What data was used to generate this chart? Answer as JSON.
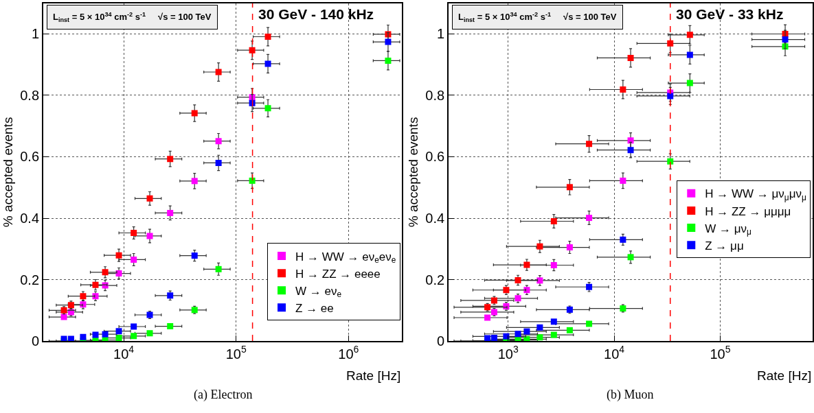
{
  "chart_data": [
    {
      "type": "scatter",
      "xlabel": "Rate [Hz]",
      "ylabel": "% accepted events",
      "log": "x",
      "grid": true,
      "legend": "bottom right",
      "marker": "square",
      "xlim": [
        1920,
        3000000
      ],
      "ylim": [
        0,
        1.1
      ],
      "xticks": [
        {
          "value": 10000,
          "label": "10$^{4}$"
        },
        {
          "value": 100000,
          "label": "10$^{5}$"
        },
        {
          "value": 1000000,
          "label": "10$^{6}$"
        }
      ],
      "yticks": [
        0,
        0.2,
        0.4,
        0.6,
        0.8,
        1
      ],
      "x": [
        2940,
        3400,
        4350,
        5610,
        6840,
        9060,
        12280,
        17060,
        25900,
        42700,
        69800,
        139000,
        192000,
        2250000
      ],
      "annotations": [
        "L$_{inst}$ = 5 × 10$^{34}$ cm$^{-2}$ s$^{-1}$     √s = 100 TeV",
        "(a) Electron"
      ],
      "ref_lines": [
        {
          "axis": "x",
          "value": 140000,
          "label": "30 GeV - 140 kHz",
          "color": "#ff0000",
          "line_style": "dashed"
        }
      ],
      "series": [
        {
          "name": "H → WW → eν$_{e}$eν$_{e}$",
          "color": "#ff00ff",
          "values": [
            0.078,
            0.094,
            0.119,
            0.146,
            0.181,
            0.22,
            0.265,
            0.342,
            0.417,
            0.521,
            0.651,
            0.794,
            null,
            null
          ],
          "errors": [
            null,
            0.012,
            0.014,
            0.015,
            0.017,
            0.018,
            0.02,
            0.022,
            0.023,
            0.025,
            0.025,
            0.028,
            null,
            null
          ],
          "xerrors": [
            [
              2170,
              3730
            ],
            [
              2510,
              4310
            ],
            [
              3210,
              5520
            ],
            [
              4150,
              7120
            ],
            [
              5050,
              8680
            ],
            [
              6700,
              11500
            ],
            [
              9070,
              15580
            ],
            [
              12600,
              21600
            ],
            [
              19100,
              32900
            ],
            [
              31600,
              54200
            ],
            [
              51600,
              88600
            ],
            [
              103000,
              176000
            ],
            null,
            null
          ]
        },
        {
          "name": "H → ZZ → eeee",
          "color": "#ff0000",
          "values": [
            0.1,
            0.117,
            0.146,
            0.183,
            0.224,
            0.279,
            0.352,
            0.464,
            0.593,
            0.742,
            0.876,
            0.947,
            0.991,
            0.999
          ],
          "errors": [
            0.012,
            0.013,
            0.015,
            0.017,
            0.018,
            0.02,
            0.02,
            0.022,
            0.025,
            0.027,
            0.03,
            0.03,
            0.03,
            0.03
          ],
          "xerrors": [
            [
              2170,
              3730
            ],
            [
              2510,
              4310
            ],
            [
              3210,
              5520
            ],
            [
              4150,
              7120
            ],
            [
              5050,
              8680
            ],
            [
              6700,
              11500
            ],
            [
              9070,
              15580
            ],
            [
              12600,
              21600
            ],
            [
              19100,
              32900
            ],
            [
              31600,
              54200
            ],
            [
              51600,
              88600
            ],
            [
              103000,
              176000
            ],
            [
              142000,
              244000
            ],
            [
              1660000,
              2860000
            ]
          ]
        },
        {
          "name": "W → eν$_{e}$",
          "color": "#00ff00",
          "values": [
            0,
            0,
            0,
            0.002,
            0.003,
            0.01,
            0.016,
            0.025,
            0.048,
            0.101,
            0.234,
            0.522,
            0.758,
            0.913
          ],
          "errors": [
            null,
            null,
            null,
            null,
            null,
            null,
            null,
            null,
            null,
            0.012,
            0.02,
            0.025,
            0.028,
            0.03
          ],
          "xerrors": [
            [
              2170,
              3730
            ],
            [
              2510,
              4310
            ],
            [
              3210,
              5520
            ],
            [
              4150,
              7120
            ],
            [
              5050,
              8680
            ],
            [
              6700,
              11500
            ],
            [
              9070,
              15580
            ],
            [
              12600,
              21600
            ],
            [
              19100,
              32900
            ],
            [
              31600,
              54200
            ],
            [
              51600,
              88600
            ],
            [
              103000,
              176000
            ],
            [
              142000,
              244000
            ],
            [
              1660000,
              2860000
            ]
          ]
        },
        {
          "name": "Z → ee",
          "color": "#0000ff",
          "values": [
            0.007,
            0.007,
            0.013,
            0.02,
            0.022,
            0.032,
            0.047,
            0.085,
            0.148,
            0.278,
            0.58,
            0.775,
            0.903,
            0.974
          ],
          "errors": [
            null,
            null,
            null,
            null,
            null,
            null,
            null,
            0.012,
            0.015,
            0.018,
            0.025,
            0.028,
            0.03,
            0.03
          ],
          "xerrors": [
            null,
            null,
            null,
            null,
            [
              5050,
              8680
            ],
            [
              6700,
              11500
            ],
            [
              9070,
              15580
            ],
            [
              12600,
              21600
            ],
            [
              19100,
              32900
            ],
            [
              31600,
              54200
            ],
            [
              51600,
              88600
            ],
            [
              103000,
              176000
            ],
            [
              142000,
              244000
            ],
            [
              1660000,
              2860000
            ]
          ]
        }
      ]
    },
    {
      "type": "scatter",
      "xlabel": "Rate [Hz]",
      "ylabel": "% accepted events",
      "log": "x",
      "grid": true,
      "legend": "right",
      "marker": "square",
      "xlim": [
        274,
        740000
      ],
      "ylim": [
        0,
        1.1
      ],
      "xticks": [
        {
          "value": 1000,
          "label": "10$^{3}$"
        },
        {
          "value": 10000,
          "label": "10$^{4}$"
        },
        {
          "value": 100000,
          "label": "10$^{5}$"
        }
      ],
      "yticks": [
        0,
        0.2,
        0.4,
        0.6,
        0.8,
        1
      ],
      "x": [
        638,
        739,
        959,
        1238,
        1500,
        1991,
        2700,
        3810,
        5800,
        12100,
        14300,
        33800,
        51800,
        410000
      ],
      "annotations": [
        "L$_{inst}$ = 5 × 10$^{34}$ cm$^{-2}$ s$^{-1}$     √s = 100 TeV",
        "(b) Muon"
      ],
      "ref_lines": [
        {
          "axis": "x",
          "value": 33800,
          "label": "30 GeV - 33 kHz",
          "color": "#ff0000",
          "line_style": "dashed"
        }
      ],
      "series": [
        {
          "name": "H → WW → μν$_{μ}$μν$_{μ}$",
          "color": "#ff00ff",
          "values": [
            0.076,
            0.094,
            0.113,
            0.139,
            0.166,
            0.197,
            0.247,
            0.305,
            0.401,
            0.522,
            0.653,
            0.809,
            null,
            null
          ],
          "errors": [
            null,
            0.012,
            0.013,
            0.014,
            0.015,
            0.016,
            0.018,
            0.02,
            0.022,
            0.025,
            0.025,
            0.028,
            null,
            null
          ],
          "xerrors": [
            [
              309,
              975
            ],
            [
              358,
              1130
            ],
            [
              465,
              1466
            ],
            [
              600,
              1893
            ],
            [
              727,
              2290
            ],
            [
              966,
              3044
            ],
            [
              1310,
              4130
            ],
            [
              1848,
              5830
            ],
            [
              2810,
              8870
            ],
            [
              5870,
              18500
            ],
            [
              6930,
              21900
            ],
            [
              16400,
              51700
            ],
            null,
            null
          ]
        },
        {
          "name": "H → ZZ → μμμμ",
          "color": "#ff0000",
          "values": [
            0.11,
            0.132,
            0.166,
            0.198,
            0.248,
            0.308,
            0.39,
            0.501,
            0.642,
            0.819,
            0.922,
            0.969,
            0.997,
            1.0
          ],
          "errors": [
            0.012,
            0.013,
            0.015,
            0.016,
            0.018,
            0.02,
            0.022,
            0.025,
            0.027,
            0.03,
            0.03,
            0.03,
            0.03,
            0.03
          ],
          "xerrors": [
            [
              309,
              975
            ],
            [
              358,
              1130
            ],
            [
              465,
              1466
            ],
            [
              600,
              1893
            ],
            [
              727,
              2290
            ],
            [
              966,
              3044
            ],
            [
              1310,
              4130
            ],
            [
              1848,
              5830
            ],
            [
              2810,
              8870
            ],
            [
              5870,
              18500
            ],
            [
              6930,
              21900
            ],
            [
              16400,
              51700
            ],
            [
              32400,
              70700
            ],
            [
              199000,
              627000
            ]
          ]
        },
        {
          "name": "W → μν$_{μ}$",
          "color": "#00ff00",
          "values": [
            0,
            0,
            0.001,
            0.003,
            0.006,
            0.012,
            0.02,
            0.035,
            0.056,
            0.106,
            0.273,
            0.585,
            0.84,
            0.959
          ],
          "errors": [
            null,
            null,
            null,
            null,
            null,
            null,
            null,
            null,
            null,
            0.012,
            0.02,
            0.025,
            0.03,
            0.03
          ],
          "xerrors": [
            [
              309,
              975
            ],
            [
              358,
              1130
            ],
            [
              465,
              1466
            ],
            [
              600,
              1893
            ],
            [
              727,
              2290
            ],
            [
              966,
              3044
            ],
            [
              1310,
              4130
            ],
            [
              1848,
              5830
            ],
            [
              2810,
              8870
            ],
            [
              5870,
              18500
            ],
            [
              6930,
              21900
            ],
            [
              16400,
              51700
            ],
            [
              32400,
              70700
            ],
            [
              199000,
              627000
            ]
          ]
        },
        {
          "name": "Z → μμ",
          "color": "#0000ff",
          "values": [
            0.009,
            0.01,
            0.015,
            0.023,
            0.031,
            0.044,
            0.063,
            0.102,
            0.176,
            0.33,
            0.622,
            0.798,
            0.932,
            0.982
          ],
          "errors": [
            null,
            null,
            null,
            null,
            null,
            null,
            null,
            0.012,
            0.015,
            0.018,
            0.025,
            0.028,
            0.03,
            0.03
          ],
          "xerrors": [
            null,
            null,
            [
              465,
              1466
            ],
            [
              600,
              1893
            ],
            [
              727,
              2290
            ],
            [
              966,
              3044
            ],
            [
              1310,
              4130
            ],
            [
              1848,
              5830
            ],
            [
              2810,
              8870
            ],
            [
              5870,
              18500
            ],
            [
              6930,
              21900
            ],
            [
              16400,
              51700
            ],
            [
              32400,
              70700
            ],
            [
              199000,
              627000
            ]
          ]
        }
      ]
    }
  ]
}
